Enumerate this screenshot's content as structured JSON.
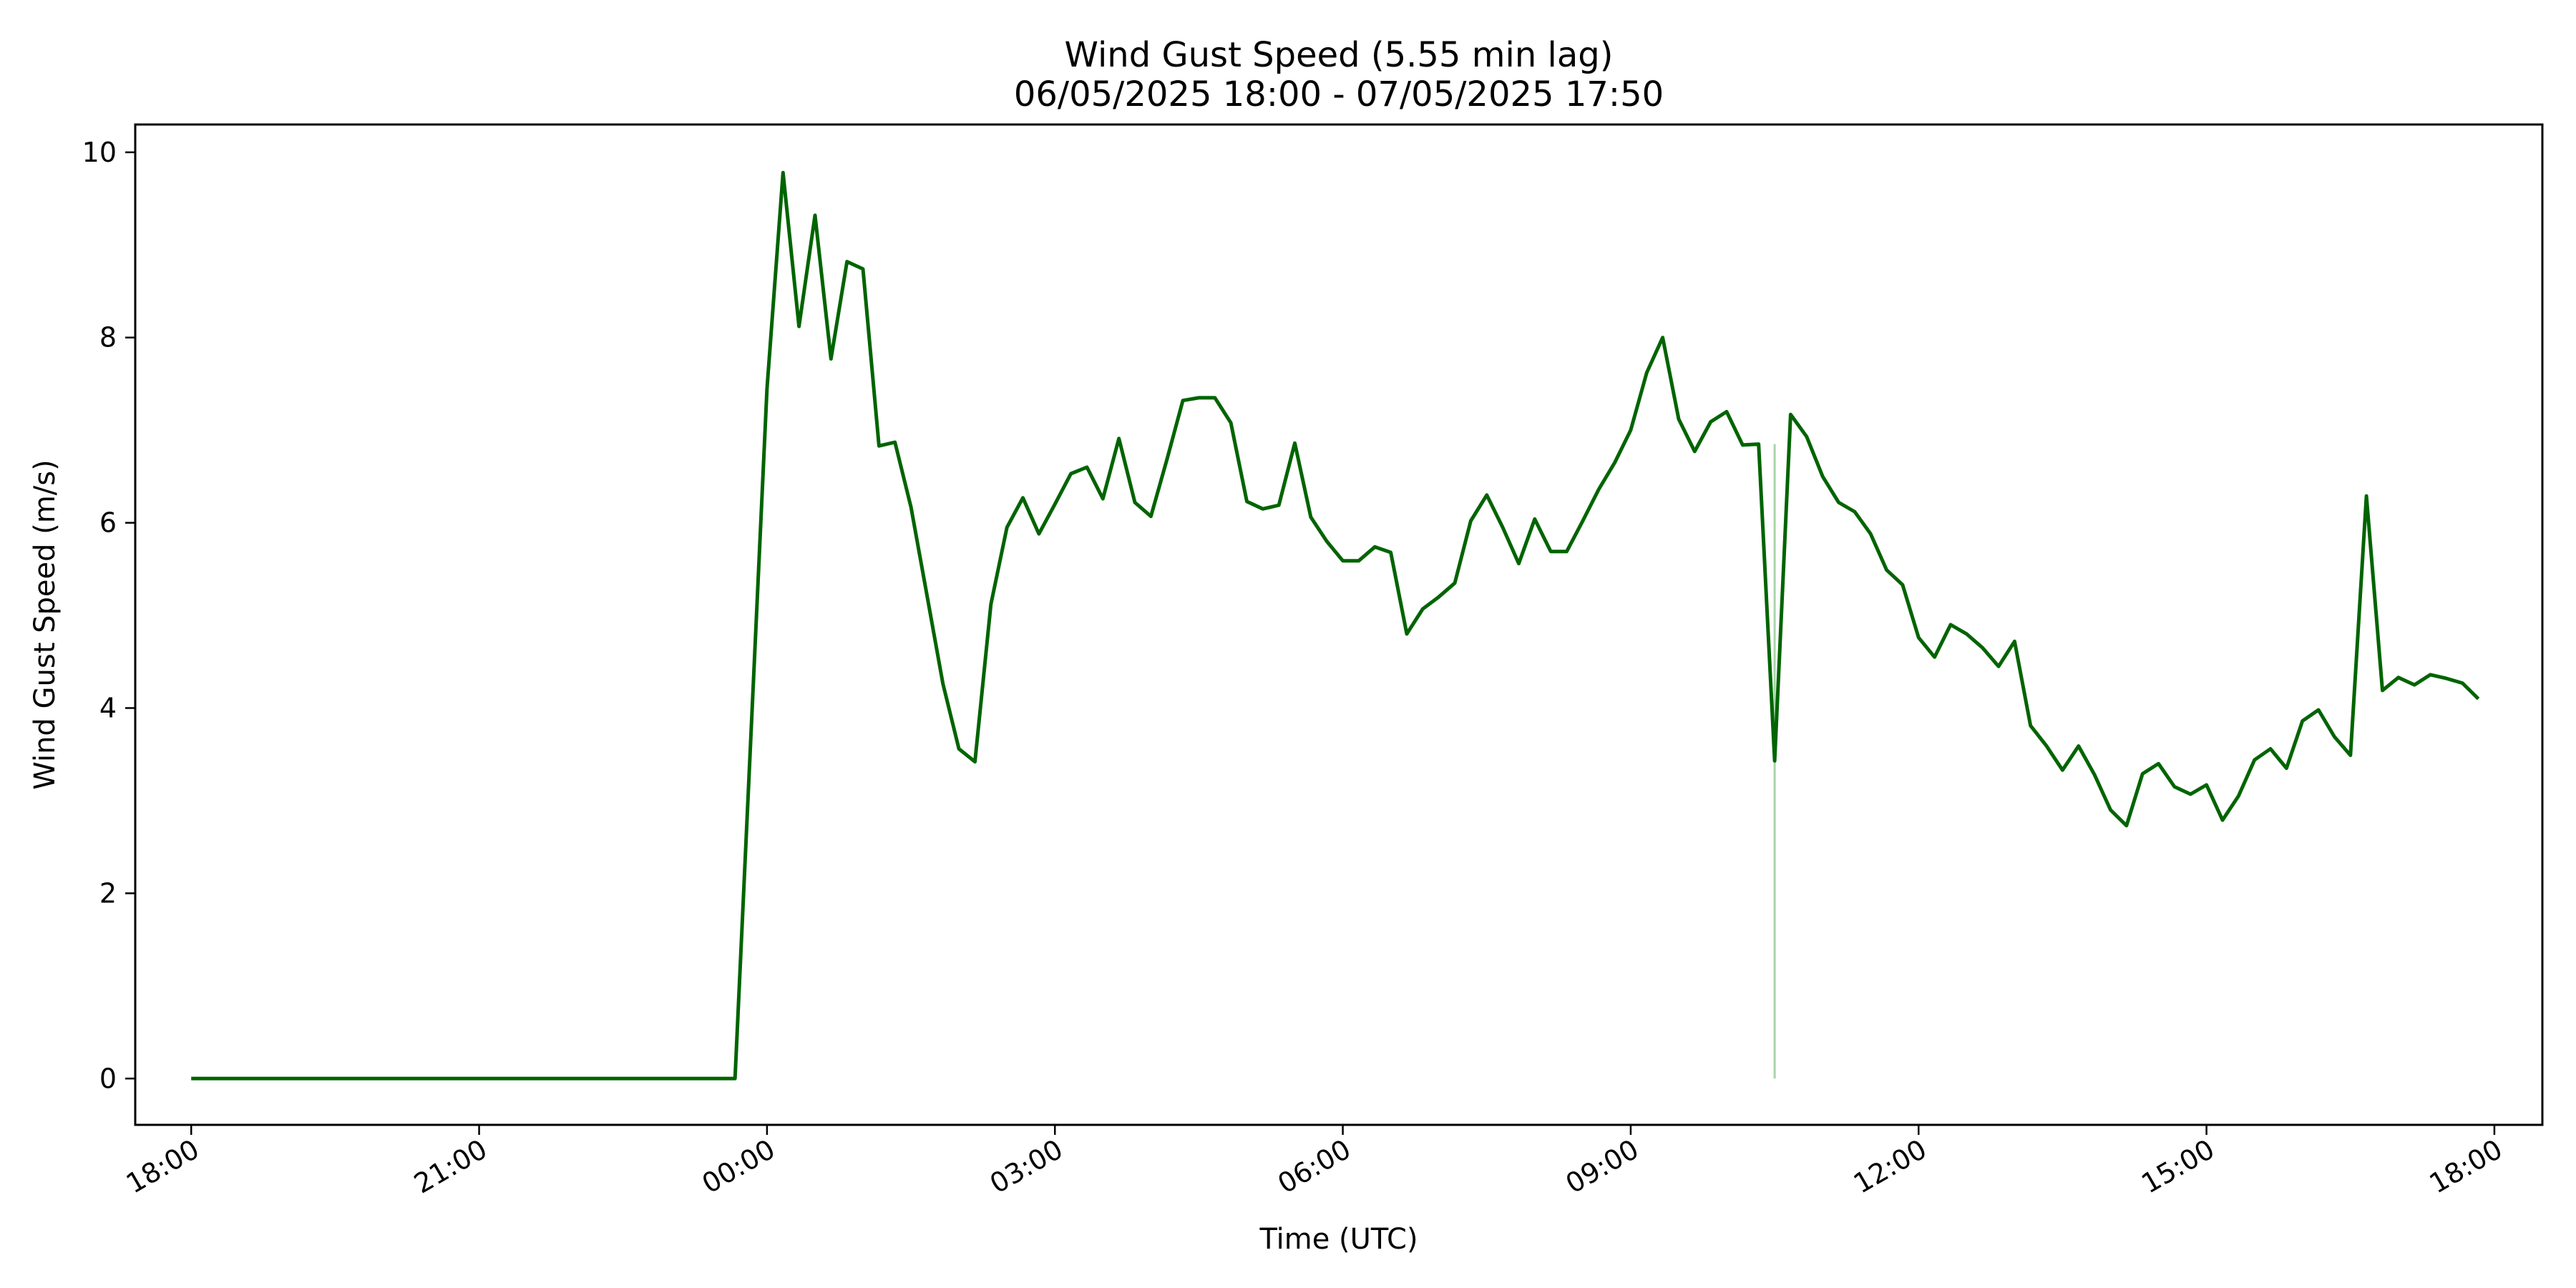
{
  "chart_data": {
    "type": "line",
    "title": "Wind Gust Speed (5.55 min lag)",
    "subtitle": "06/05/2025 18:00 - 07/05/2025 17:50",
    "xlabel": "Time (UTC)",
    "ylabel": "Wind Gust Speed (m/s)",
    "x_range": [
      "06/05/2025 17:25",
      "07/05/2025 18:30"
    ],
    "ylim": [
      -0.5,
      10.3
    ],
    "grid": false,
    "x_ticks": [
      "18:00",
      "21:00",
      "00:00",
      "03:00",
      "06:00",
      "09:00",
      "12:00",
      "15:00",
      "18:00"
    ],
    "x_tick_times": [
      "06/05/2025 18:00",
      "06/05/2025 21:00",
      "07/05/2025 00:00",
      "07/05/2025 03:00",
      "07/05/2025 06:00",
      "07/05/2025 09:00",
      "07/05/2025 12:00",
      "07/05/2025 15:00",
      "07/05/2025 18:00"
    ],
    "y_ticks": [
      0,
      2,
      4,
      6,
      8,
      10
    ],
    "series": [
      {
        "color": "#006400",
        "points": [
          [
            "06/05/2025 18:00",
            0
          ],
          [
            "06/05/2025 23:40",
            0
          ],
          [
            "07/05/2025 00:00",
            7.45
          ],
          [
            "07/05/2025 00:10",
            9.78
          ],
          [
            "07/05/2025 00:20",
            8.12
          ],
          [
            "07/05/2025 00:30",
            9.32
          ],
          [
            "07/05/2025 00:40",
            7.77
          ],
          [
            "07/05/2025 00:50",
            8.82
          ],
          [
            "07/05/2025 01:00",
            8.74
          ],
          [
            "07/05/2025 01:10",
            6.83
          ],
          [
            "07/05/2025 01:20",
            6.87
          ],
          [
            "07/05/2025 01:30",
            6.17
          ],
          [
            "07/05/2025 01:40",
            5.22
          ],
          [
            "07/05/2025 01:50",
            4.26
          ],
          [
            "07/05/2025 02:00",
            3.56
          ],
          [
            "07/05/2025 02:10",
            3.42
          ],
          [
            "07/05/2025 02:20",
            5.12
          ],
          [
            "07/05/2025 02:30",
            5.95
          ],
          [
            "07/05/2025 02:40",
            6.27
          ],
          [
            "07/05/2025 02:50",
            5.88
          ],
          [
            "07/05/2025 03:00",
            6.2
          ],
          [
            "07/05/2025 03:10",
            6.53
          ],
          [
            "07/05/2025 03:20",
            6.6
          ],
          [
            "07/05/2025 03:30",
            6.26
          ],
          [
            "07/05/2025 03:40",
            6.91
          ],
          [
            "07/05/2025 03:50",
            6.22
          ],
          [
            "07/05/2025 04:00",
            6.07
          ],
          [
            "07/05/2025 04:10",
            6.68
          ],
          [
            "07/05/2025 04:20",
            7.32
          ],
          [
            "07/05/2025 04:30",
            7.35
          ],
          [
            "07/05/2025 04:40",
            7.35
          ],
          [
            "07/05/2025 04:50",
            7.08
          ],
          [
            "07/05/2025 05:00",
            6.23
          ],
          [
            "07/05/2025 05:10",
            6.15
          ],
          [
            "07/05/2025 05:20",
            6.19
          ],
          [
            "07/05/2025 05:30",
            6.86
          ],
          [
            "07/05/2025 05:40",
            6.06
          ],
          [
            "07/05/2025 05:50",
            5.8
          ],
          [
            "07/05/2025 06:00",
            5.59
          ],
          [
            "07/05/2025 06:10",
            5.59
          ],
          [
            "07/05/2025 06:20",
            5.74
          ],
          [
            "07/05/2025 06:30",
            5.68
          ],
          [
            "07/05/2025 06:40",
            4.8
          ],
          [
            "07/05/2025 06:50",
            5.07
          ],
          [
            "07/05/2025 07:00",
            5.2
          ],
          [
            "07/05/2025 07:10",
            5.35
          ],
          [
            "07/05/2025 07:20",
            6.02
          ],
          [
            "07/05/2025 07:30",
            6.3
          ],
          [
            "07/05/2025 07:40",
            5.95
          ],
          [
            "07/05/2025 07:50",
            5.56
          ],
          [
            "07/05/2025 08:00",
            6.04
          ],
          [
            "07/05/2025 08:10",
            5.69
          ],
          [
            "07/05/2025 08:20",
            5.69
          ],
          [
            "07/05/2025 08:30",
            6.02
          ],
          [
            "07/05/2025 08:40",
            6.36
          ],
          [
            "07/05/2025 08:50",
            6.65
          ],
          [
            "07/05/2025 09:00",
            7.0
          ],
          [
            "07/05/2025 09:10",
            7.62
          ],
          [
            "07/05/2025 09:20",
            8.0
          ],
          [
            "07/05/2025 09:30",
            7.12
          ],
          [
            "07/05/2025 09:40",
            6.77
          ],
          [
            "07/05/2025 09:50",
            7.09
          ],
          [
            "07/05/2025 10:00",
            7.2
          ],
          [
            "07/05/2025 10:10",
            6.84
          ],
          [
            "07/05/2025 10:20",
            6.85
          ],
          [
            "07/05/2025 10:30",
            3.43
          ],
          [
            "07/05/2025 10:40",
            7.17
          ],
          [
            "07/05/2025 10:50",
            6.93
          ],
          [
            "07/05/2025 11:00",
            6.5
          ],
          [
            "07/05/2025 11:10",
            6.22
          ],
          [
            "07/05/2025 11:20",
            6.12
          ],
          [
            "07/05/2025 11:30",
            5.88
          ],
          [
            "07/05/2025 11:40",
            5.49
          ],
          [
            "07/05/2025 11:50",
            5.33
          ],
          [
            "07/05/2025 12:00",
            4.76
          ],
          [
            "07/05/2025 12:10",
            4.55
          ],
          [
            "07/05/2025 12:20",
            4.9
          ],
          [
            "07/05/2025 12:30",
            4.8
          ],
          [
            "07/05/2025 12:40",
            4.65
          ],
          [
            "07/05/2025 12:50",
            4.45
          ],
          [
            "07/05/2025 13:00",
            4.72
          ],
          [
            "07/05/2025 13:10",
            3.81
          ],
          [
            "07/05/2025 13:20",
            3.59
          ],
          [
            "07/05/2025 13:30",
            3.33
          ],
          [
            "07/05/2025 13:40",
            3.59
          ],
          [
            "07/05/2025 13:50",
            3.28
          ],
          [
            "07/05/2025 14:00",
            2.9
          ],
          [
            "07/05/2025 14:10",
            2.73
          ],
          [
            "07/05/2025 14:20",
            3.29
          ],
          [
            "07/05/2025 14:30",
            3.4
          ],
          [
            "07/05/2025 14:40",
            3.15
          ],
          [
            "07/05/2025 14:50",
            3.07
          ],
          [
            "07/05/2025 15:00",
            3.17
          ],
          [
            "07/05/2025 15:10",
            2.79
          ],
          [
            "07/05/2025 15:20",
            3.05
          ],
          [
            "07/05/2025 15:30",
            3.44
          ],
          [
            "07/05/2025 15:40",
            3.56
          ],
          [
            "07/05/2025 15:50",
            3.35
          ],
          [
            "07/05/2025 16:00",
            3.86
          ],
          [
            "07/05/2025 16:10",
            3.98
          ],
          [
            "07/05/2025 16:20",
            3.69
          ],
          [
            "07/05/2025 16:30",
            3.49
          ],
          [
            "07/05/2025 16:40",
            6.29
          ],
          [
            "07/05/2025 16:50",
            4.19
          ],
          [
            "07/05/2025 17:00",
            4.33
          ],
          [
            "07/05/2025 17:10",
            4.25
          ],
          [
            "07/05/2025 17:20",
            4.36
          ],
          [
            "07/05/2025 17:30",
            4.32
          ],
          [
            "07/05/2025 17:40",
            4.27
          ],
          [
            "07/05/2025 17:50",
            4.1
          ]
        ]
      }
    ],
    "annotations": [
      {
        "type": "vertical-line",
        "time": "07/05/2025 10:30",
        "y_range": [
          0,
          6.85
        ],
        "color": "#a8d5a8"
      }
    ]
  }
}
